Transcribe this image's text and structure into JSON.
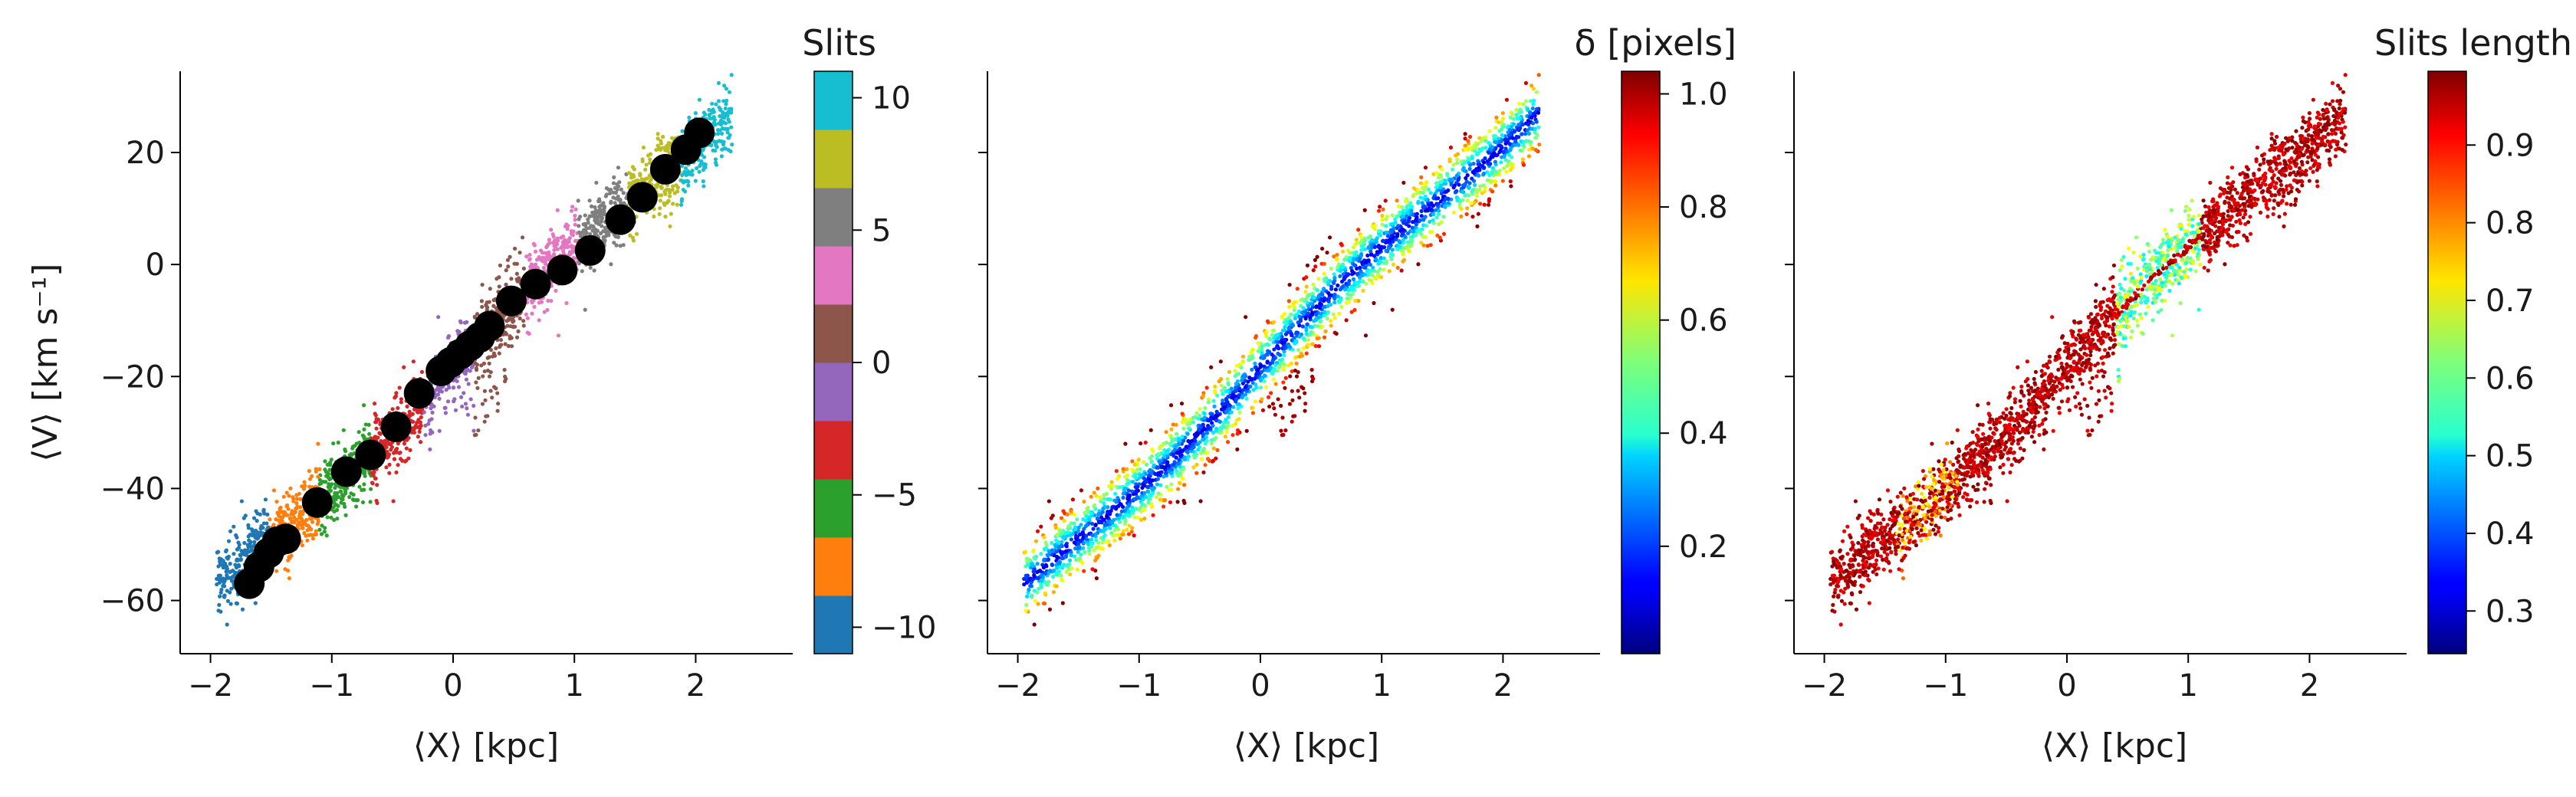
{
  "chart_data": [
    {
      "type": "scatter",
      "xlabel": "⟨X⟩ [kpc]",
      "ylabel": "⟨V⟩ [km s⁻¹]",
      "xlim": [
        -2.25,
        2.8
      ],
      "ylim": [
        -69.5,
        34.5
      ],
      "x_ticks": [
        -2,
        -1,
        0,
        1,
        2
      ],
      "y_ticks": [
        -60,
        -40,
        -20,
        0,
        20
      ],
      "x_tick_labels": [
        "−2",
        "−1",
        "0",
        "1",
        "2"
      ],
      "y_tick_labels": [
        "−60",
        "−40",
        "−20",
        "0",
        "20"
      ],
      "colorbar": {
        "title": "Slits",
        "colormap": "tab10",
        "range": [
          -11,
          11
        ],
        "ticks": [
          -10,
          -5,
          0,
          5,
          10
        ],
        "tick_labels": [
          "−10",
          "−5",
          "0",
          "5",
          "10"
        ],
        "colors": [
          "#1f77b4",
          "#ff7f0e",
          "#2ca02c",
          "#d62728",
          "#9467bd",
          "#8c564b",
          "#e377c2",
          "#7f7f7f",
          "#bcbd22",
          "#17becf"
        ]
      },
      "overlay": {
        "marker_color": "#000000",
        "x": [
          -1.68,
          -1.6,
          -1.52,
          -1.45,
          -1.38,
          -1.12,
          -0.88,
          -0.68,
          -0.47,
          -0.28,
          -0.1,
          -0.02,
          0.06,
          0.14,
          0.22,
          0.3,
          0.48,
          0.68,
          0.9,
          1.13,
          1.38,
          1.56,
          1.75,
          1.92,
          2.03
        ],
        "y": [
          -57,
          -54,
          -51.5,
          -49.5,
          -49,
          -42.5,
          -37,
          -34,
          -29,
          -23,
          -19,
          -17.5,
          -16,
          -14.5,
          -13,
          -11,
          -6.5,
          -3.5,
          -1,
          2.5,
          8,
          12,
          17,
          20.5,
          23.5
        ]
      }
    },
    {
      "type": "scatter",
      "xlabel": "⟨X⟩ [kpc]",
      "xlim": [
        -2.25,
        2.8
      ],
      "ylim": [
        -69.5,
        34.5
      ],
      "x_ticks": [
        -2,
        -1,
        0,
        1,
        2
      ],
      "x_tick_labels": [
        "−2",
        "−1",
        "0",
        "1",
        "2"
      ],
      "colorbar": {
        "title": "δ [pixels]",
        "colormap": "jet",
        "range": [
          0.01,
          1.04
        ],
        "ticks": [
          0.2,
          0.4,
          0.6,
          0.8,
          1.0
        ],
        "tick_labels": [
          "0.2",
          "0.4",
          "0.6",
          "0.8",
          "1.0"
        ]
      }
    },
    {
      "type": "scatter",
      "xlabel": "⟨X⟩ [kpc]",
      "xlim": [
        -2.25,
        2.8
      ],
      "ylim": [
        -69.5,
        34.5
      ],
      "x_ticks": [
        -2,
        -1,
        0,
        1,
        2
      ],
      "x_tick_labels": [
        "−2",
        "−1",
        "0",
        "1",
        "2"
      ],
      "colorbar": {
        "title": "Slits length",
        "colormap": "jet",
        "range": [
          0.245,
          0.995
        ],
        "ticks": [
          0.3,
          0.4,
          0.5,
          0.6,
          0.7,
          0.8,
          0.9
        ],
        "tick_labels": [
          "0.3",
          "0.4",
          "0.5",
          "0.6",
          "0.7",
          "0.8",
          "0.9"
        ]
      }
    }
  ]
}
